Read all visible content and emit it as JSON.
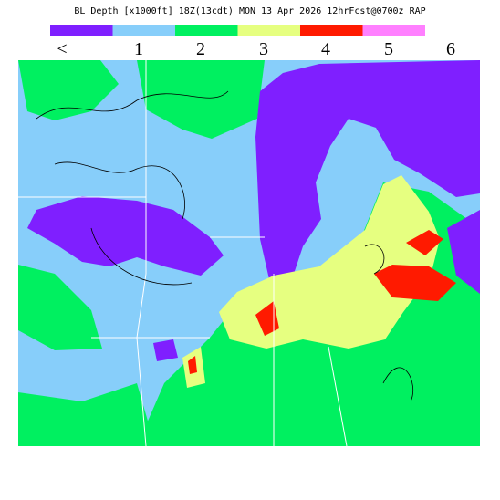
{
  "header": {
    "title": "BL Depth [x1000ft] 18Z(13cdt) MON 13 Apr 2026 12hrFcst@0700z RAP"
  },
  "legend": {
    "items": [
      {
        "label": "<",
        "color": "#7f1fff"
      },
      {
        "label": "1",
        "color": "#87cefa"
      },
      {
        "label": "2",
        "color": "#00f060"
      },
      {
        "label": "3",
        "color": "#e6ff80"
      },
      {
        "label": "4",
        "color": "#ff1a00"
      },
      {
        "label": "5",
        "color": "#ff80ff"
      },
      {
        "label": "6",
        "color": null
      }
    ]
  }
}
